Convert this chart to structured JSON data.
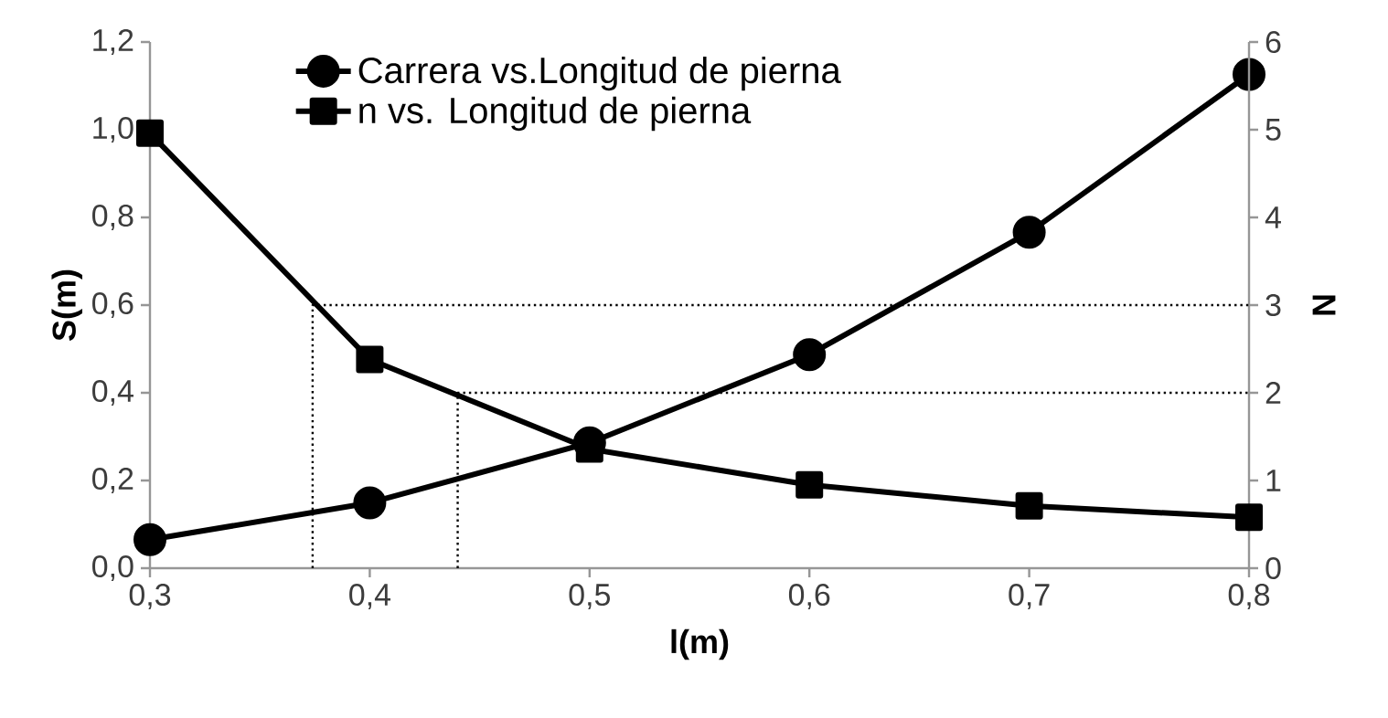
{
  "chart_data": {
    "type": "line",
    "xlabel": "l(m)",
    "ylabel": "S(m)",
    "y2label": "N",
    "legend": "top",
    "line_style": "solid",
    "xlim": [
      0.3,
      0.8
    ],
    "xticks": [
      {
        "value": 0.3,
        "label": "0,3"
      },
      {
        "value": 0.4,
        "label": "0,4"
      },
      {
        "value": 0.5,
        "label": "0,5"
      },
      {
        "value": 0.6,
        "label": "0,6"
      },
      {
        "value": 0.7,
        "label": "0,7"
      },
      {
        "value": 0.8,
        "label": "0,8"
      }
    ],
    "ylim": [
      0,
      1.2
    ],
    "yticks": [
      {
        "value": 0,
        "label": "0,0"
      },
      {
        "value": 0.2,
        "label": "0,2"
      },
      {
        "value": 0.4,
        "label": "0,4"
      },
      {
        "value": 0.6,
        "label": "0,6"
      },
      {
        "value": 0.8,
        "label": "0,8"
      },
      {
        "value": 1.0,
        "label": "1,0"
      },
      {
        "value": 1.2,
        "label": "1,2"
      }
    ],
    "y2lim": [
      0,
      6
    ],
    "y2ticks": [
      0,
      1,
      2,
      3,
      4,
      5,
      6
    ],
    "x": [
      0.3,
      0.4,
      0.5,
      0.6,
      0.7,
      0.8
    ],
    "series": [
      {
        "name": "Carrera vs.Longitud de pierna",
        "color": "#000000",
        "marker": "circle",
        "values": [
          0.065,
          0.149,
          0.286,
          0.487,
          0.766,
          1.126
        ]
      },
      {
        "name": "n vs. Longitud de pierna",
        "color": "#000000",
        "marker": "square",
        "axis": "y2",
        "values": [
          4.96,
          2.38,
          1.36,
          0.95,
          0.71,
          0.58
        ]
      },
      {
        "color": "#000000",
        "marker": "none",
        "line_style": "dotted",
        "axis": "y2",
        "x": [
          0.374,
          0.374,
          0.8
        ],
        "values": [
          0,
          3,
          3
        ]
      },
      {
        "color": "#000000",
        "marker": "none",
        "line_style": "dotted",
        "axis": "y2",
        "x": [
          0.44,
          0.44,
          0.8
        ],
        "values": [
          0,
          2,
          2
        ]
      }
    ]
  }
}
